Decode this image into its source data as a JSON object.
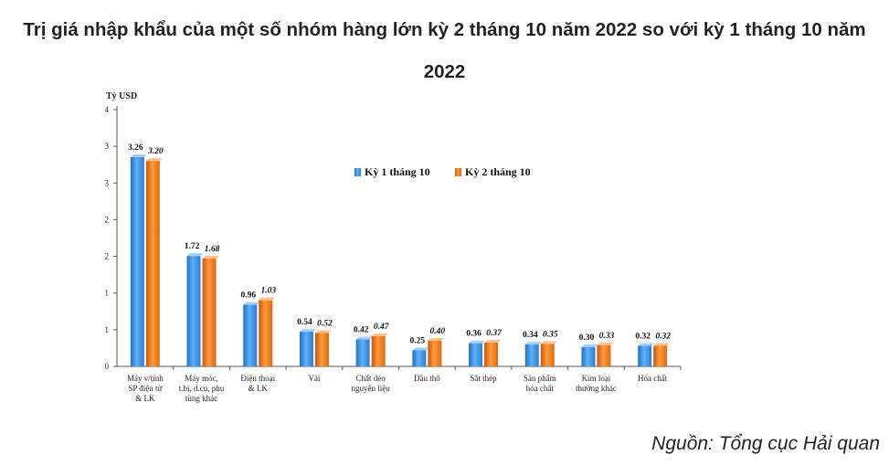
{
  "title_line1": "Trị giá nhập khẩu của một số nhóm hàng lớn kỳ 2 tháng 10 năm 2022 so với kỳ 1 tháng 10 năm",
  "title_line2": "2022",
  "source": "Nguồn: Tổng cục Hải quan",
  "chart_data": {
    "type": "bar",
    "ylabel": "Tỷ USD",
    "ylim": [
      0,
      4
    ],
    "y_ticks": [
      "0",
      "1",
      "1",
      "2",
      "2",
      "3",
      "3",
      "4"
    ],
    "grid": false,
    "legend_position": "top-right",
    "categories": [
      [
        "Máy v/tính",
        "SP điện tử",
        "& LK"
      ],
      [
        "Máy móc,",
        "t.bị, d.cụ, phụ",
        "tùng khác"
      ],
      [
        "Điện thoại",
        "& LK"
      ],
      [
        "Vải"
      ],
      [
        "Chất dẻo",
        "nguyên liệu"
      ],
      [
        "Dầu thô"
      ],
      [
        "Sắt thép"
      ],
      [
        "Sản phẩm",
        "hóa chất"
      ],
      [
        "Kim loại",
        "thường khác"
      ],
      [
        "Hóa chất"
      ]
    ],
    "series": [
      {
        "name": "Kỳ 1 tháng 10",
        "color": "#3a8fe0",
        "values": [
          3.26,
          1.72,
          0.96,
          0.54,
          0.42,
          0.25,
          0.36,
          0.34,
          0.3,
          0.32
        ],
        "labels": [
          "3.26",
          "1.72",
          "0.96",
          "0.54",
          "0.42",
          "0.25",
          "0.36",
          "0.34",
          "0.30",
          "0.32"
        ]
      },
      {
        "name": "Kỳ 2 tháng 10",
        "color": "#f07b1c",
        "values": [
          3.2,
          1.68,
          1.03,
          0.52,
          0.47,
          0.4,
          0.37,
          0.35,
          0.33,
          0.32
        ],
        "labels": [
          "3.20",
          "1.68",
          "1.03",
          "0.52",
          "0.47",
          "0.40",
          "0.37",
          "0.35",
          "0.33",
          "0.32"
        ]
      }
    ]
  }
}
